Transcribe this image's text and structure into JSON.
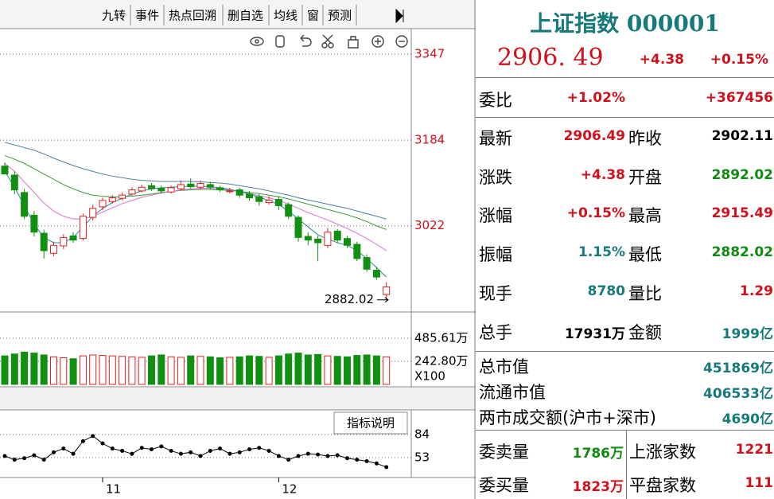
{
  "toolbar": {
    "tabs": [
      "九转",
      "事件",
      "热点回溯",
      "删自选",
      "均线",
      "窗",
      "预测"
    ]
  },
  "chart_data": [
    {
      "type": "candlestick",
      "ylim": [
        2859,
        3389
      ],
      "yticks": [
        3347,
        3184,
        3022
      ],
      "grid": true,
      "open": [
        3135,
        3118,
        3085,
        3042,
        3008,
        2970,
        2984,
        3003,
        2998,
        3038,
        3058,
        3068,
        3074,
        3082,
        3088,
        3098,
        3093,
        3086,
        3092,
        3101,
        3095,
        3100,
        3094,
        3088,
        3090,
        3082,
        3077,
        3066,
        3072,
        3062,
        3038,
        3002,
        2997,
        2985,
        3012,
        2998,
        2987,
        2962,
        2938,
        2892.02
      ],
      "close": [
        3120,
        3090,
        3040,
        3010,
        2975,
        2985,
        3000,
        2995,
        3040,
        3055,
        3070,
        3075,
        3080,
        3090,
        3095,
        3092,
        3088,
        3094,
        3100,
        3096,
        3102,
        3095,
        3090,
        3088,
        3080,
        3075,
        3068,
        3070,
        3060,
        3040,
        3000,
        2995,
        2990,
        3010,
        2995,
        2985,
        2960,
        2940,
        2925,
        2906.49
      ],
      "high": [
        3142,
        3125,
        3092,
        3050,
        3015,
        2992,
        3006,
        3010,
        3045,
        3062,
        3075,
        3080,
        3085,
        3095,
        3100,
        3103,
        3098,
        3098,
        3108,
        3112,
        3108,
        3105,
        3098,
        3094,
        3094,
        3088,
        3082,
        3078,
        3078,
        3066,
        3042,
        3010,
        3003,
        3018,
        3016,
        3003,
        2992,
        2968,
        2945,
        2915.49
      ],
      "low": [
        3125,
        3082,
        3035,
        3002,
        2960,
        2965,
        2978,
        2990,
        2994,
        3032,
        3052,
        3064,
        3070,
        3078,
        3085,
        3088,
        3083,
        3083,
        3089,
        3092,
        3090,
        3090,
        3086,
        3083,
        3075,
        3070,
        3060,
        3062,
        3052,
        3035,
        2992,
        2985,
        2955,
        2980,
        2990,
        2980,
        2955,
        2935,
        2920,
        2882.02
      ],
      "up_color": "#e02020",
      "down_color": "#109010",
      "low_marker": 2882.02,
      "series": [
        {
          "color": "#4f7fa0",
          "values": [
            3180,
            3175,
            3170,
            3165,
            3158,
            3150,
            3143,
            3136,
            3130,
            3125,
            3120,
            3116,
            3113,
            3110,
            3108,
            3107,
            3106,
            3106,
            3106,
            3106,
            3105,
            3104,
            3103,
            3101,
            3098,
            3095,
            3092,
            3088,
            3084,
            3080,
            3075,
            3071,
            3067,
            3063,
            3059,
            3055,
            3050,
            3045,
            3040,
            3035
          ]
        },
        {
          "color": "#3a9a3a",
          "values": [
            3155,
            3148,
            3140,
            3130,
            3120,
            3110,
            3100,
            3092,
            3085,
            3080,
            3078,
            3077,
            3077,
            3078,
            3080,
            3082,
            3085,
            3087,
            3089,
            3090,
            3091,
            3091,
            3090,
            3089,
            3087,
            3085,
            3083,
            3080,
            3077,
            3073,
            3068,
            3063,
            3058,
            3053,
            3048,
            3043,
            3037,
            3030,
            3022,
            3015
          ]
        },
        {
          "color": "#e070d0",
          "values": [
            3140,
            3125,
            3105,
            3085,
            3065,
            3050,
            3040,
            3035,
            3035,
            3040,
            3048,
            3056,
            3064,
            3070,
            3076,
            3080,
            3084,
            3087,
            3090,
            3092,
            3093,
            3093,
            3092,
            3090,
            3087,
            3083,
            3079,
            3075,
            3070,
            3063,
            3055,
            3047,
            3040,
            3033,
            3025,
            3017,
            3008,
            2998,
            2987,
            2975
          ]
        },
        {
          "color": "#2a8a9a",
          "values": [
            3125,
            3095,
            3060,
            3025,
            3000,
            2990,
            2990,
            3000,
            3020,
            3040,
            3055,
            3066,
            3074,
            3082,
            3088,
            3092,
            3094,
            3095,
            3096,
            3097,
            3097,
            3096,
            3094,
            3091,
            3087,
            3082,
            3076,
            3070,
            3062,
            3050,
            3035,
            3020,
            3005,
            2997,
            2990,
            2985,
            2975,
            2960,
            2943,
            2925
          ]
        }
      ]
    },
    {
      "type": "bar",
      "ylim": [
        0,
        720
      ],
      "yticks": [
        {
          "value": 485.61,
          "label": "485.61万"
        },
        {
          "value": 242.8,
          "label": "242.80万"
        }
      ],
      "unit_label": "X100",
      "values": [
        300,
        320,
        340,
        330,
        310,
        290,
        280,
        270,
        300,
        310,
        305,
        300,
        295,
        290,
        285,
        300,
        310,
        290,
        285,
        300,
        295,
        290,
        280,
        285,
        290,
        300,
        295,
        285,
        300,
        320,
        330,
        310,
        315,
        300,
        295,
        290,
        305,
        310,
        300,
        290
      ]
    },
    {
      "type": "line",
      "ylim": [
        26,
        114
      ],
      "yticks": [
        84,
        53
      ],
      "color": "#000000",
      "button": "指标说明",
      "categories": [
        null,
        null,
        null,
        null,
        null,
        null,
        null,
        null,
        null,
        null,
        "11",
        null,
        null,
        null,
        null,
        null,
        null,
        null,
        null,
        null,
        null,
        null,
        null,
        null,
        null,
        null,
        null,
        null,
        "12",
        null,
        null,
        null,
        null,
        null,
        null,
        null,
        null,
        null,
        null,
        null
      ],
      "values": [
        55,
        50,
        52,
        56,
        50,
        60,
        65,
        58,
        75,
        82,
        72,
        65,
        62,
        58,
        66,
        64,
        68,
        62,
        58,
        60,
        55,
        62,
        65,
        58,
        60,
        64,
        66,
        62,
        55,
        50,
        55,
        58,
        57,
        55,
        56,
        52,
        50,
        48,
        45,
        40
      ]
    }
  ],
  "quote": {
    "title": "上证指数 000001",
    "price": "2906. 49",
    "change": "+4.38",
    "change_pct": "+0.15%",
    "weibi": [
      "委比",
      "+1.02%",
      "+367456"
    ],
    "rows": [
      [
        "最新",
        "2906.49",
        "昨收",
        "2902.11"
      ],
      [
        "涨跌",
        "+4.38",
        "开盘",
        "2892.02"
      ],
      [
        "涨幅",
        "+0.15%",
        "最高",
        "2915.49"
      ],
      [
        "振幅",
        "1.15%",
        "最低",
        "2882.02"
      ],
      [
        "现手",
        "8780",
        "量比",
        "1.29"
      ],
      [
        "总手",
        "17931万",
        "金额",
        "1999亿"
      ]
    ],
    "market": [
      [
        "总市值",
        "451869亿"
      ],
      [
        "流通市值",
        "406533亿"
      ],
      [
        "两市成交额(沪市+深市)",
        "4690亿"
      ]
    ],
    "orders": [
      [
        "委卖量",
        "1786万",
        "上涨家数",
        "1221"
      ],
      [
        "委买量",
        "1823万",
        "平盘家数",
        "111"
      ]
    ]
  }
}
